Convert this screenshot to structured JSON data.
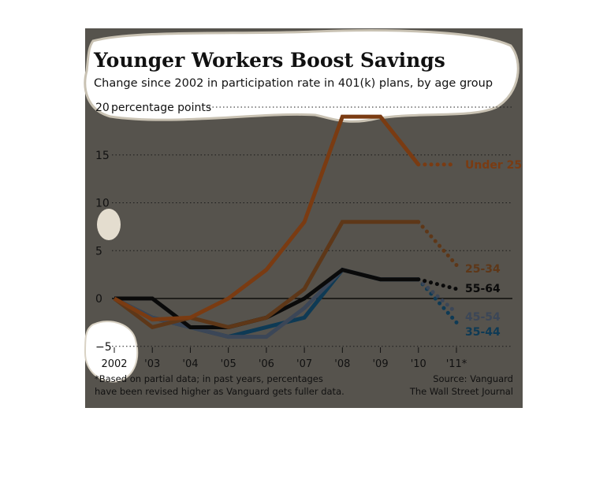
{
  "chart_data": {
    "type": "line",
    "title": "Younger Workers Boost Savings",
    "subtitle": "Change since 2002 in participation rate in 401(k) plans, by age group",
    "y_unit_label": "percentage points",
    "categories": [
      "2002",
      "'03",
      "'04",
      "'05",
      "'06",
      "'07",
      "'08",
      "'09",
      "'10",
      "'11*"
    ],
    "y_ticks": [
      20,
      15,
      10,
      5,
      0,
      -5
    ],
    "ylim": [
      -5,
      20
    ],
    "grid": "dotted horizontal gridlines",
    "partial_data_from_index": 8,
    "series": [
      {
        "name": "Under 25",
        "color": "#7a3b12",
        "values": [
          0,
          -2.2,
          -2.0,
          0,
          3,
          8,
          19,
          19,
          14,
          14
        ]
      },
      {
        "name": "25-34",
        "color": "#5e3718",
        "values": [
          0,
          -3,
          -2,
          -3,
          -2,
          1,
          8,
          8,
          8,
          3.5
        ]
      },
      {
        "name": "55-64",
        "color": "#0a0a0a",
        "values": [
          0,
          0,
          -3,
          -3,
          -2,
          0,
          3,
          2,
          2,
          1
        ]
      },
      {
        "name": "45-54",
        "color": "#3b4657",
        "values": [
          0,
          -2,
          -3,
          -4,
          -4,
          -1,
          3,
          2,
          2,
          -1.5
        ]
      },
      {
        "name": "35-44",
        "color": "#0e3a55",
        "values": [
          0,
          -2,
          -3,
          -4,
          -3,
          -2,
          3,
          2,
          2,
          -2.5
        ]
      }
    ],
    "footnote_lines": [
      "*Based on partial data; in past years, percentages",
      "have been revised higher as Vanguard gets fuller data."
    ],
    "source_lines": [
      "Source: Vanguard",
      "The Wall Street Journal"
    ]
  }
}
